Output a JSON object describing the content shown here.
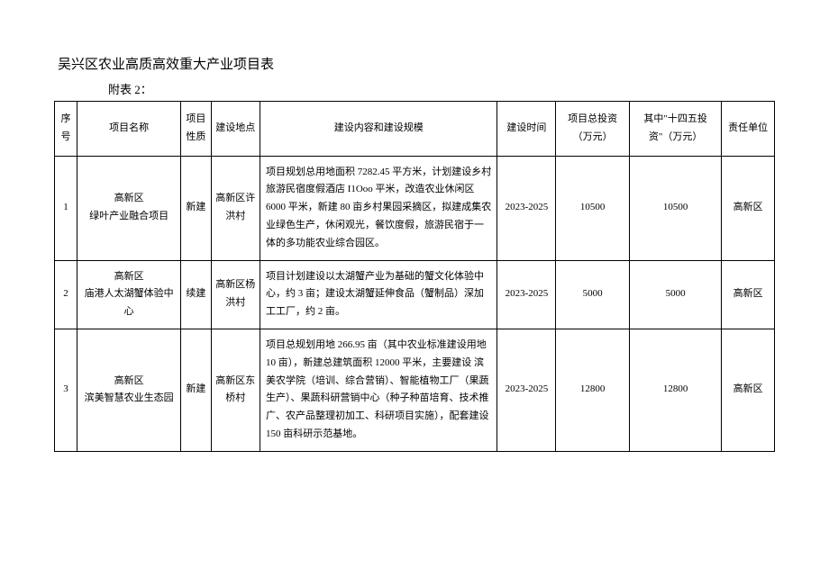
{
  "title": "吴兴区农业高质高效重大产业项目表",
  "subtitle": "附表 2：",
  "table": {
    "headers": {
      "seq": "序号",
      "name": "项目名称",
      "nature": "项目性质",
      "location": "建设地点",
      "content": "建设内容和建设规模",
      "time": "建设时间",
      "total_investment": "项目总投资（万元）",
      "investment_145": "其中\"十四五投资\"（万元）",
      "dept": "责任单位"
    },
    "rows": [
      {
        "seq": "1",
        "name_line1": "高新区",
        "name_line2": "绿叶产业融合项目",
        "nature": "新建",
        "location": "高新区许洪村",
        "content": "项目规划总用地面积 7282.45 平方米，计划建设乡村旅游民宿度假酒店 I1Ooo 平米，改造农业休闲区 6000 平米，新建 80 亩乡村果园采摘区，拟建成集农业绿色生产，休闲观光，餐饮度假，旅游民宿于一体的多功能农业综合园区。",
        "time": "2023-2025",
        "total_investment": "10500",
        "investment_145": "10500",
        "dept": "高新区"
      },
      {
        "seq": "2",
        "name_line1": "高新区",
        "name_line2": "庙港人太湖蟹体验中心",
        "nature": "续建",
        "location": "高新区杨洪村",
        "content": "项目计划建设以太湖蟹产业为基础的蟹文化体验中心，约 3 亩；建设太湖蟹延伸食品（蟹制品）深加工工厂，约 2 亩。",
        "time": "2023-2025",
        "total_investment": "5000",
        "investment_145": "5000",
        "dept": "高新区"
      },
      {
        "seq": "3",
        "name_line1": "高新区",
        "name_line2": "滨美智慧农业生态园",
        "nature": "新建",
        "location": "高新区东桥村",
        "content": "项目总规划用地 266.95 亩（其中农业标准建设用地 10 亩），新建总建筑面积 12000 平米，主要建设 滨美农学院（培训、综合营销）、智能植物工厂（果蔬生产）、果蔬科研营销中心（种子种苗培育、技术推广、农产品整理初加工、科研项目实施），配套建设 150 亩科研示范基地。",
        "time": "2023-2025",
        "total_investment": "12800",
        "investment_145": "12800",
        "dept": "高新区"
      }
    ]
  }
}
